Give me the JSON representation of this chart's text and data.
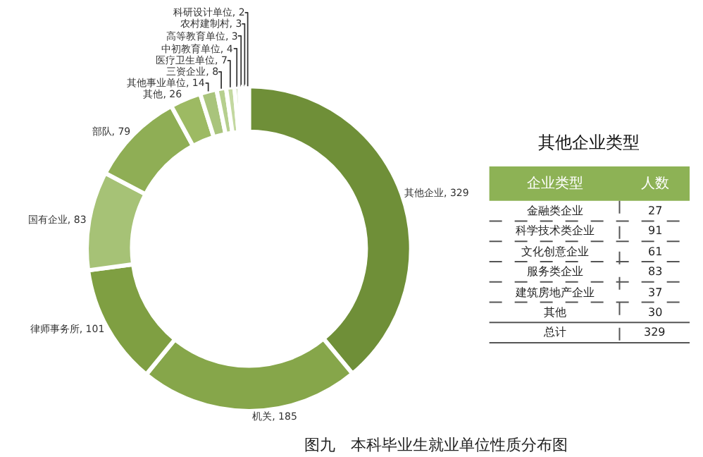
{
  "chart_data": [
    {
      "type": "donut",
      "values": [
        329,
        185,
        101,
        83,
        79,
        26,
        14,
        8,
        7,
        4,
        3,
        3,
        2
      ],
      "colors": [
        "#6f8f38",
        "#86a64a",
        "#7f9f42",
        "#a6c276",
        "#8fae55",
        "#9dba63",
        "#a9c47c",
        "#b6cf8e",
        "#c3d8a0",
        "#b0c98a",
        "#cfe0b4",
        "#dbe8c6",
        "#e6efd8"
      ],
      "value_labels": [
        "其他企业, 329",
        "机关, 185",
        "律师事务所, 101",
        "国有企业, 83",
        "部队, 79",
        "其他, 26",
        "其他事业单位, 14",
        "三资企业, 8",
        "医疗卫生单位, 7",
        "中初教育单位, 4",
        "高等教育单位, 3",
        "农村建制村, 3",
        "科研设计单位, 2"
      ],
      "annotations": [
        "图九　本科毕业生就业单位性质分布图"
      ]
    },
    {
      "type": "other",
      "title": "其他企业类型",
      "annotations": [
        "企业类型",
        "人数"
      ],
      "categories": [
        "金融类企业",
        "科学技术类企业",
        "文化创意企业",
        "服务类企业",
        "建筑房地产企业",
        "其他",
        "总计"
      ],
      "values": [
        27,
        91,
        61,
        83,
        37,
        30,
        329
      ],
      "data_labels": true,
      "color": "#8db255"
    }
  ]
}
